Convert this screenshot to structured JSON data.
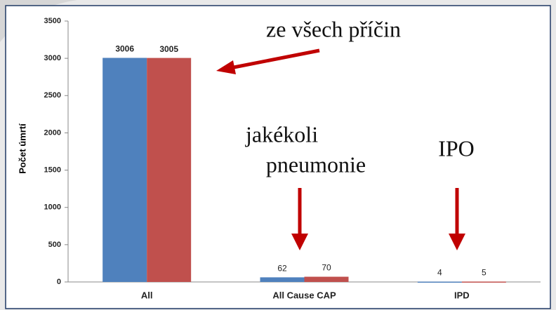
{
  "chart_data": {
    "type": "bar",
    "y_axis_label": "Počet úmrtí",
    "categories": [
      "All",
      "All Cause CAP",
      "IPD"
    ],
    "series": [
      {
        "color": "#4f81bd",
        "values": [
          3006,
          62,
          4
        ]
      },
      {
        "color": "#c0504d",
        "values": [
          3005,
          70,
          5
        ]
      }
    ],
    "ylim": [
      0,
      3500
    ],
    "yticks": [
      0,
      500,
      1000,
      1500,
      2000,
      2500,
      3000,
      3500
    ],
    "grid": false,
    "annotations": [
      "ze všech příčin",
      "jakékoli",
      "pneumonie",
      "IPO"
    ]
  }
}
